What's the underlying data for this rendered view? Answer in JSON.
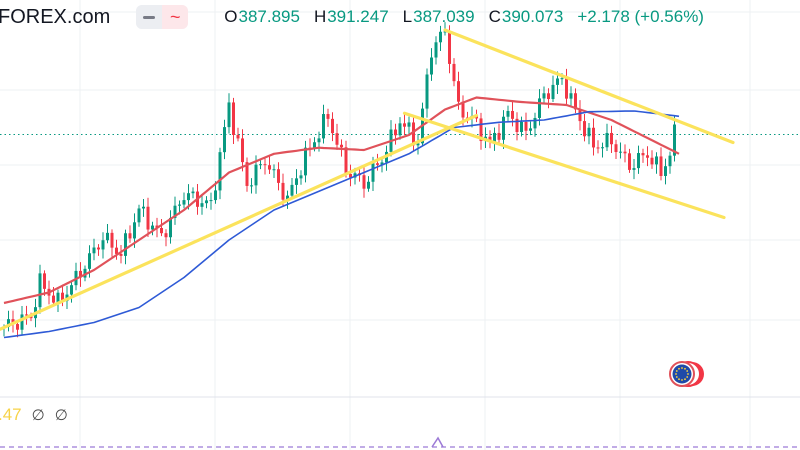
{
  "header": {
    "brand": "FOREX.com",
    "open_label": "O",
    "open": "387.895",
    "high_label": "H",
    "high": "391.247",
    "low_label": "L",
    "low": "387.039",
    "close_label": "C",
    "close": "390.073",
    "change": "+2.178 (+0.56%)",
    "wave_icon": "~"
  },
  "indicator": {
    "value": ".47",
    "na1": "∅",
    "na2": "∅"
  },
  "colors": {
    "up": "#089981",
    "down": "#f23645",
    "ma_fast": "#e0525a",
    "ma_slow": "#2e5ad6",
    "trendline": "#fbe35c",
    "grid": "#eef0f3",
    "dotted": "#089981"
  },
  "chart_data": {
    "type": "candlestick",
    "title": "",
    "ylim": [
      356,
      404
    ],
    "current_price": 390.073,
    "candle_count": 150,
    "anchors": [
      [
        0,
        364.4
      ],
      [
        6,
        365.8
      ],
      [
        8,
        370.3
      ],
      [
        12,
        367.6
      ],
      [
        16,
        370.8
      ],
      [
        22,
        376.4
      ],
      [
        26,
        374.1
      ],
      [
        30,
        380.1
      ],
      [
        35,
        376.4
      ],
      [
        40,
        382.1
      ],
      [
        46,
        380.6
      ],
      [
        50,
        394.0
      ],
      [
        54,
        383.4
      ],
      [
        58,
        386.7
      ],
      [
        63,
        381.4
      ],
      [
        67,
        387.2
      ],
      [
        72,
        392.5
      ],
      [
        76,
        385.4
      ],
      [
        80,
        383.5
      ],
      [
        84,
        386.9
      ],
      [
        88,
        391.9
      ],
      [
        92,
        389.0
      ],
      [
        95,
        401.5
      ],
      [
        98,
        403.8
      ],
      [
        101,
        393.5
      ],
      [
        104,
        392.2
      ],
      [
        108,
        388.7
      ],
      [
        112,
        392.8
      ],
      [
        116,
        390.2
      ],
      [
        120,
        395.3
      ],
      [
        124,
        397.5
      ],
      [
        127,
        393.2
      ],
      [
        131,
        388.5
      ],
      [
        135,
        389.2
      ],
      [
        139,
        385.9
      ],
      [
        143,
        387.5
      ],
      [
        146,
        385.0
      ],
      [
        148,
        387.5
      ],
      [
        149,
        390.07
      ]
    ],
    "series": [
      {
        "type": "line",
        "anchors": [
          [
            0,
            367.6
          ],
          [
            10,
            369.0
          ],
          [
            20,
            372.0
          ],
          [
            30,
            376.0
          ],
          [
            40,
            380.0
          ],
          [
            50,
            385.0
          ],
          [
            60,
            387.5
          ],
          [
            70,
            388.3
          ],
          [
            80,
            388.0
          ],
          [
            90,
            390.0
          ],
          [
            98,
            393.4
          ],
          [
            105,
            395.0
          ],
          [
            115,
            394.4
          ],
          [
            125,
            394.0
          ],
          [
            135,
            392.0
          ],
          [
            145,
            389.0
          ],
          [
            150,
            387.5
          ]
        ]
      },
      {
        "type": "line",
        "anchors": [
          [
            0,
            363.0
          ],
          [
            10,
            363.8
          ],
          [
            20,
            365.0
          ],
          [
            30,
            367.0
          ],
          [
            40,
            371.0
          ],
          [
            50,
            376.0
          ],
          [
            60,
            380.0
          ],
          [
            70,
            382.5
          ],
          [
            80,
            385.0
          ],
          [
            90,
            387.5
          ],
          [
            100,
            391.0
          ],
          [
            110,
            391.7
          ],
          [
            120,
            392.0
          ],
          [
            130,
            393.1
          ],
          [
            140,
            393.2
          ],
          [
            150,
            392.5
          ]
        ]
      },
      {
        "type": "trendline",
        "points": [
          [
            -5,
            363.0
          ],
          [
            105,
            392.6
          ]
        ]
      },
      {
        "type": "trendline",
        "points": [
          [
            98,
            404.0
          ],
          [
            162,
            389.0
          ]
        ]
      },
      {
        "type": "trendline",
        "points": [
          [
            89,
            392.9
          ],
          [
            160,
            379.0
          ]
        ]
      }
    ]
  }
}
